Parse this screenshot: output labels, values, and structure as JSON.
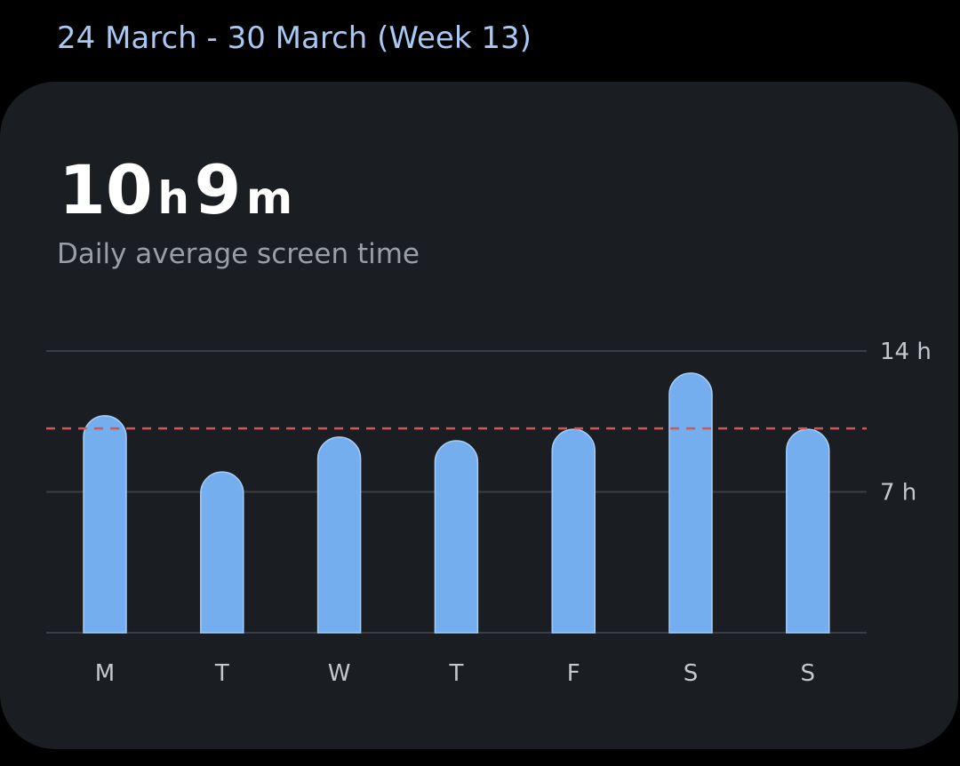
{
  "header": {
    "title": "24 March - 30 March (Week 13)"
  },
  "summary": {
    "hours": "10",
    "hours_unit": "h",
    "minutes": "9",
    "minutes_unit": "m",
    "caption": "Daily average screen time"
  },
  "chart_data": {
    "type": "bar",
    "categories": [
      "M",
      "T",
      "W",
      "T",
      "F",
      "S",
      "S"
    ],
    "values": [
      10.78,
      7.99,
      9.72,
      9.54,
      10.11,
      12.9,
      10.11
    ],
    "color": "#74aeee",
    "average": 10.15,
    "average_color": "#d9534f",
    "ylim": [
      0,
      14
    ],
    "yticks": [
      {
        "value": 7,
        "label": "7 h"
      },
      {
        "value": 14,
        "label": "14 h"
      }
    ],
    "grid": true
  }
}
